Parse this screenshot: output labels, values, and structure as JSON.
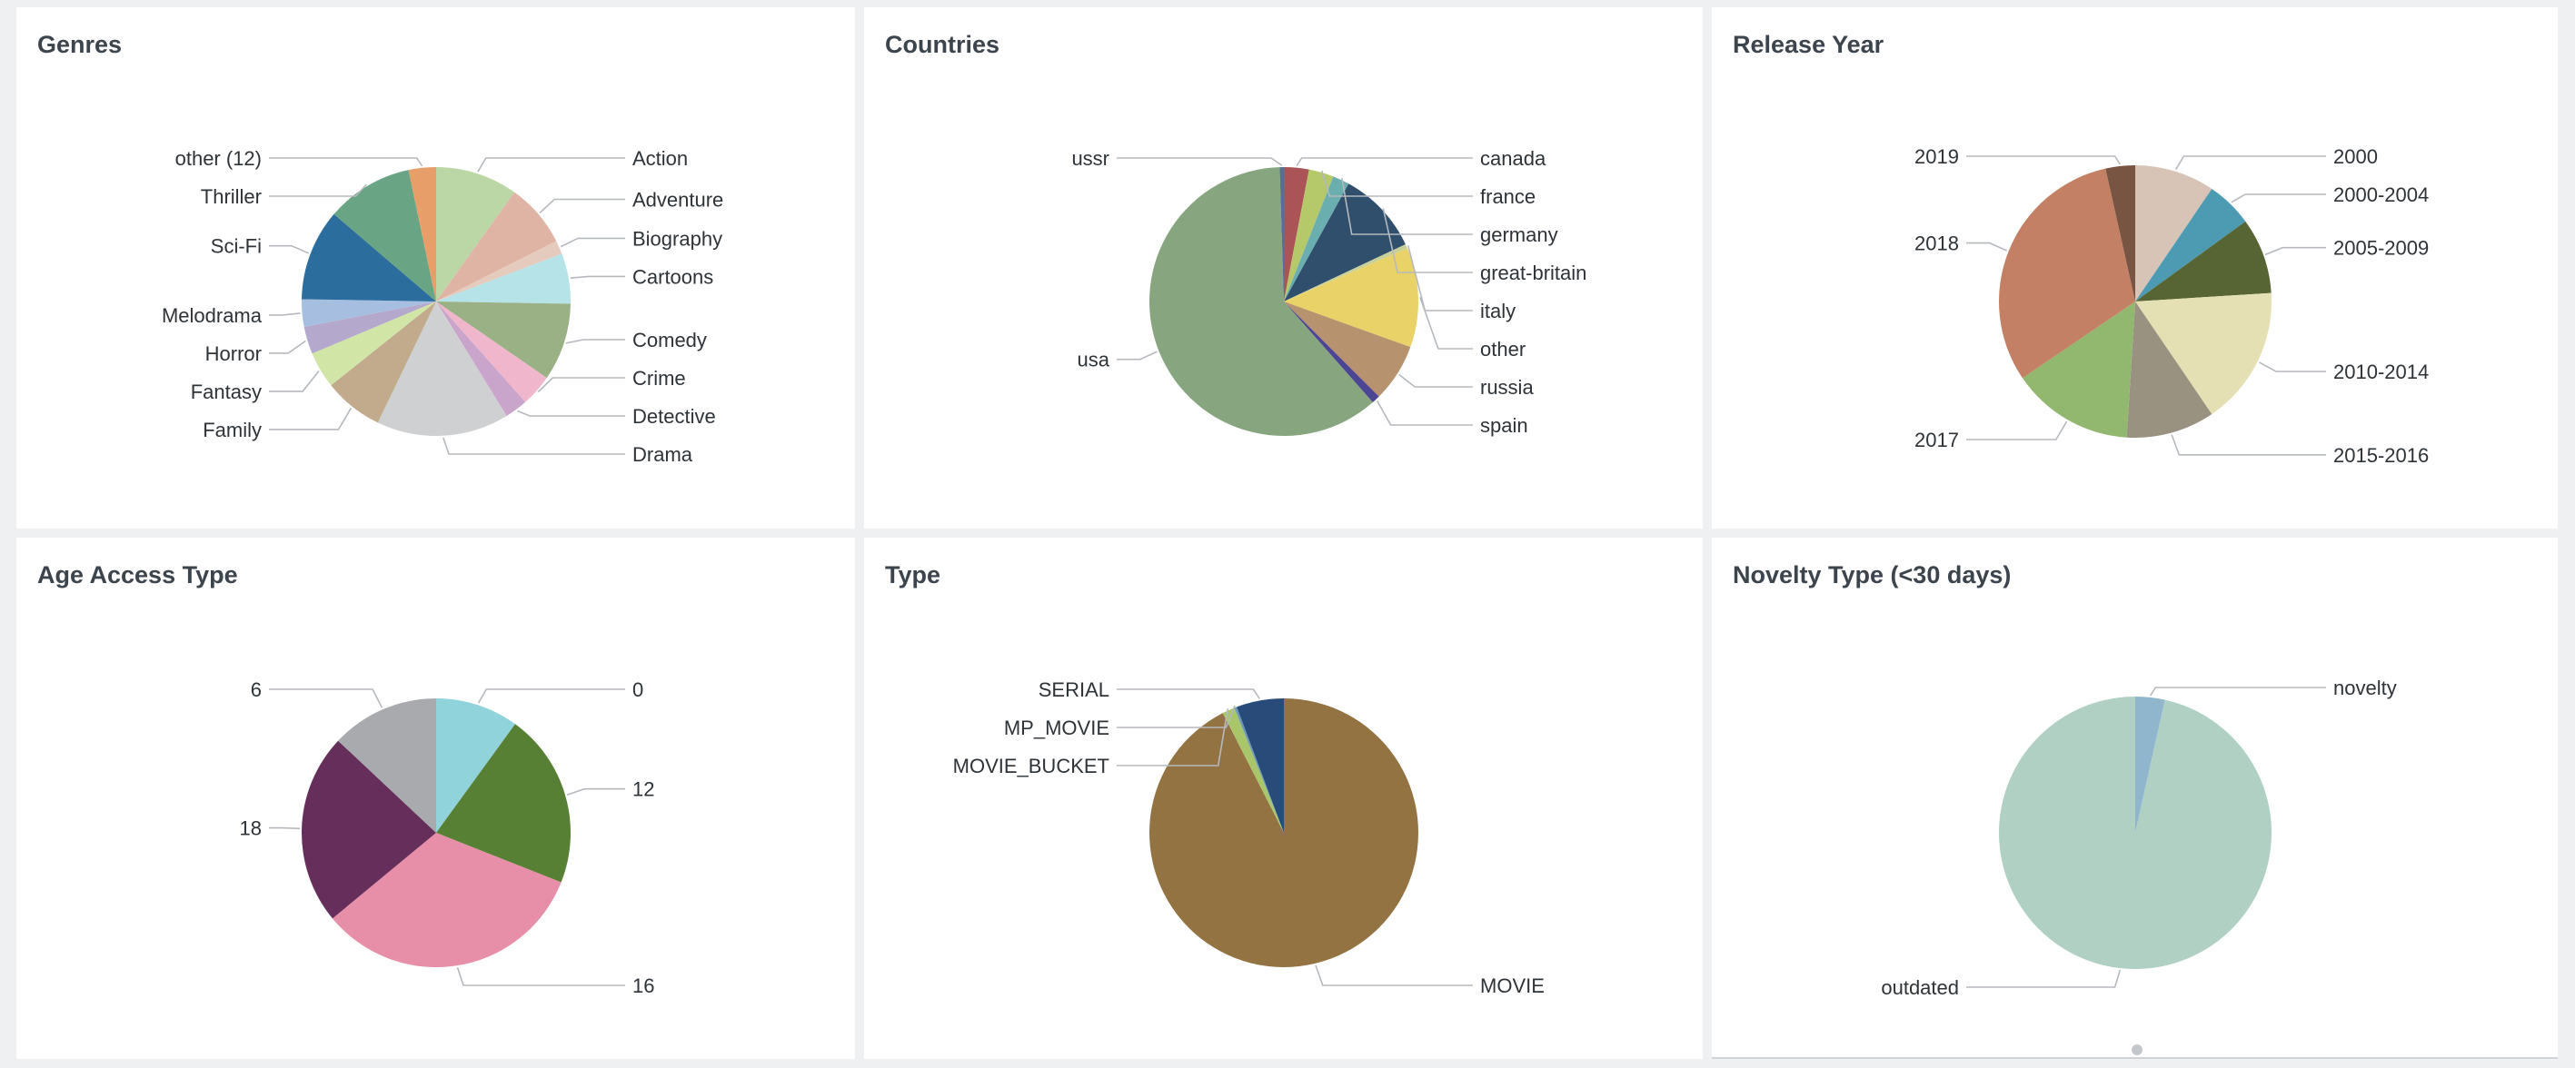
{
  "dashboard": {
    "panels": [
      {
        "id": "p0",
        "title": "Genres"
      },
      {
        "id": "p1",
        "title": "Countries"
      },
      {
        "id": "p2",
        "title": "Release Year"
      },
      {
        "id": "p3",
        "title": "Age Access Type"
      },
      {
        "id": "p4",
        "title": "Type"
      },
      {
        "id": "p5",
        "title": "Novelty Type (<30 days)"
      }
    ]
  },
  "chart_data": [
    {
      "type": "pie",
      "title": "Genres",
      "slices": [
        {
          "label": "Action",
          "value": 9.0,
          "color": "#bcd7a6"
        },
        {
          "label": "Adventure",
          "value": 7.0,
          "color": "#e0b4a4"
        },
        {
          "label": "Biography",
          "value": 1.5,
          "color": "#e4cbbd"
        },
        {
          "label": "Cartoons",
          "value": 5.5,
          "color": "#b5e3e8"
        },
        {
          "label": "Comedy",
          "value": 8.5,
          "color": "#99b184"
        },
        {
          "label": "Crime",
          "value": 3.5,
          "color": "#f0b6cc"
        },
        {
          "label": "Detective",
          "value": 2.5,
          "color": "#caa5cb"
        },
        {
          "label": "Drama",
          "value": 14.5,
          "color": "#cfd0d2"
        },
        {
          "label": "Family",
          "value": 6.5,
          "color": "#c1ab8c"
        },
        {
          "label": "Fantasy",
          "value": 4.0,
          "color": "#d1e5a7"
        },
        {
          "label": "Horror",
          "value": 3.0,
          "color": "#b4a8cc"
        },
        {
          "label": "Melodrama",
          "value": 3.0,
          "color": "#a6bfe0"
        },
        {
          "label": "Sci-Fi",
          "value": 10.0,
          "color": "#2b6e9e"
        },
        {
          "label": "Thriller",
          "value": 9.5,
          "color": "#69a485"
        },
        {
          "label": "other (12)",
          "value": 3.0,
          "color": "#e79e69"
        }
      ]
    },
    {
      "type": "pie",
      "title": "Countries",
      "slices": [
        {
          "label": "canada",
          "value": 3.0,
          "color": "#ab5458"
        },
        {
          "label": "france",
          "value": 3.0,
          "color": "#b6c96a"
        },
        {
          "label": "germany",
          "value": 2.0,
          "color": "#6aaeb0"
        },
        {
          "label": "great-britain",
          "value": 10.0,
          "color": "#304f6d"
        },
        {
          "label": "italy",
          "value": 0.5,
          "color": "#c8d09a"
        },
        {
          "label": "other",
          "value": 12.0,
          "color": "#e9d369"
        },
        {
          "label": "russia",
          "value": 7.0,
          "color": "#b7926f"
        },
        {
          "label": "spain",
          "value": 1.0,
          "color": "#4c4593"
        },
        {
          "label": "usa",
          "value": 61.0,
          "color": "#87a57e"
        },
        {
          "label": "ussr",
          "value": 0.5,
          "color": "#5a6d9a"
        }
      ]
    },
    {
      "type": "pie",
      "title": "Release Year",
      "slices": [
        {
          "label": "2000",
          "value": 9.5,
          "color": "#d8c4b6"
        },
        {
          "label": "2000-2004",
          "value": 5.5,
          "color": "#4c9bb3"
        },
        {
          "label": "2005-2009",
          "value": 9.0,
          "color": "#576534"
        },
        {
          "label": "2010-2014",
          "value": 16.5,
          "color": "#e5e0b4"
        },
        {
          "label": "2015-2016",
          "value": 10.5,
          "color": "#9a9281"
        },
        {
          "label": "2017",
          "value": 14.5,
          "color": "#92b86f"
        },
        {
          "label": "2018",
          "value": 31.0,
          "color": "#c48064"
        },
        {
          "label": "2019",
          "value": 3.5,
          "color": "#785543"
        }
      ]
    },
    {
      "type": "pie",
      "title": "Age Access Type",
      "slices": [
        {
          "label": "0",
          "value": 10.0,
          "color": "#90d3da"
        },
        {
          "label": "12",
          "value": 21.0,
          "color": "#588034"
        },
        {
          "label": "16",
          "value": 33.0,
          "color": "#e78ea9"
        },
        {
          "label": "18",
          "value": 23.0,
          "color": "#662f5b"
        },
        {
          "label": "6",
          "value": 13.0,
          "color": "#a9aaad"
        }
      ]
    },
    {
      "type": "pie",
      "title": "Type",
      "slices": [
        {
          "label": "MOVIE",
          "value": 92.5,
          "color": "#937342"
        },
        {
          "label": "MOVIE_BUCKET",
          "value": 1.5,
          "color": "#a9c76a"
        },
        {
          "label": "MP_MOVIE",
          "value": 0.3,
          "color": "#6d9ab8"
        },
        {
          "label": "SERIAL",
          "value": 5.7,
          "color": "#284b79"
        }
      ]
    },
    {
      "type": "pie",
      "title": "Novelty Type (<30 days)",
      "slices": [
        {
          "label": "novelty",
          "value": 3.5,
          "color": "#8fb6cc"
        },
        {
          "label": "outdated",
          "value": 96.5,
          "color": "#b0d0c4"
        }
      ]
    }
  ]
}
